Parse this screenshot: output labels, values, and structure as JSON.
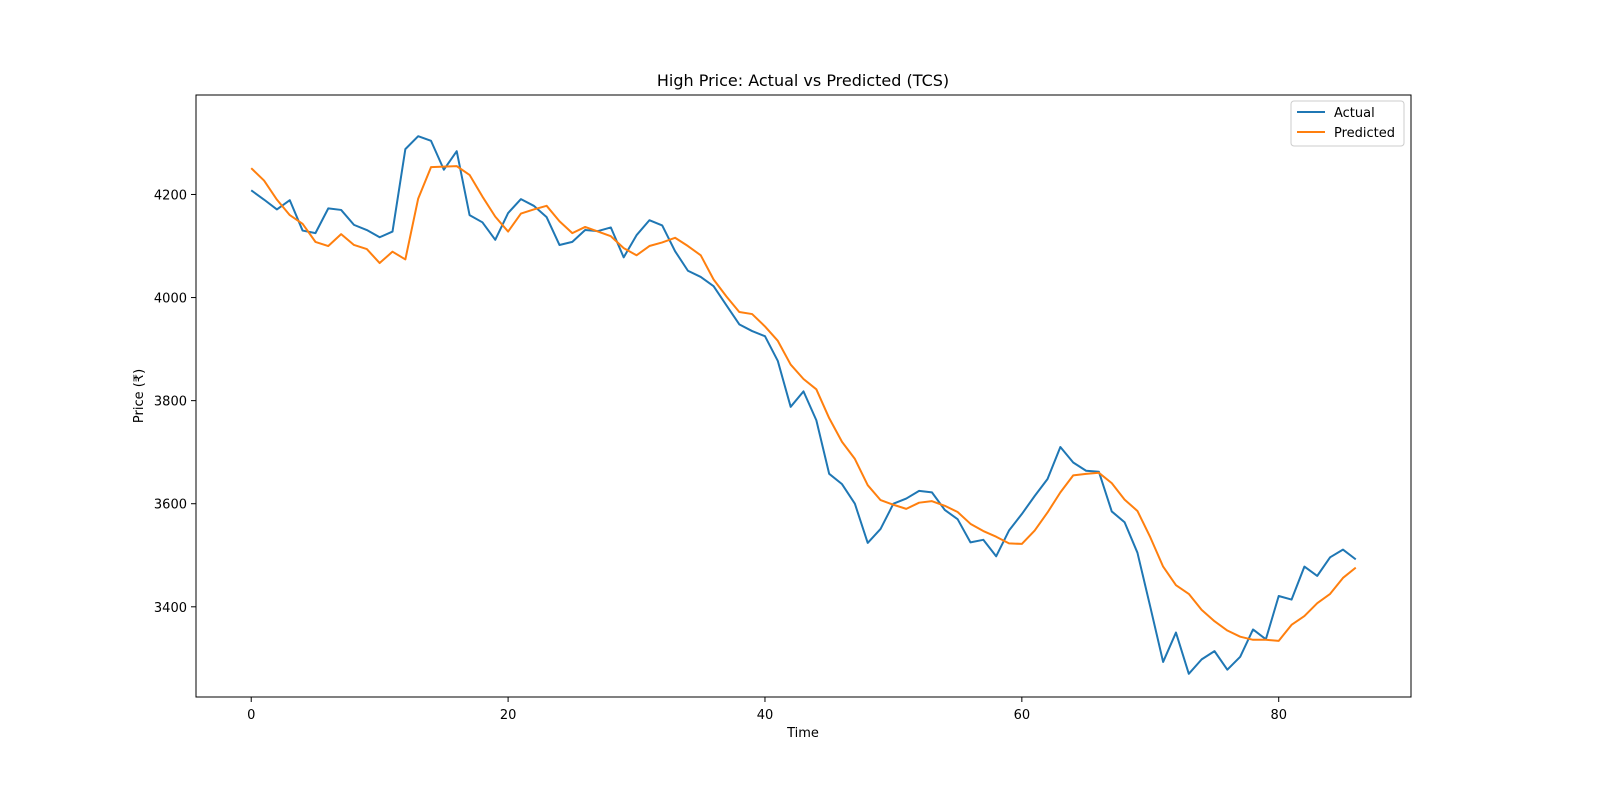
{
  "chart_data": {
    "type": "line",
    "title": "High Price: Actual vs Predicted (TCS)",
    "xlabel": "Time",
    "ylabel": "Price (₹)",
    "xlim": [
      -4.3,
      90.3
    ],
    "ylim": [
      3225,
      4393
    ],
    "xticks": [
      0,
      20,
      40,
      60,
      80
    ],
    "yticks": [
      3400,
      3600,
      3800,
      4000,
      4200
    ],
    "grid": false,
    "legend": "top-right",
    "series": [
      {
        "name": "Actual",
        "color": "#1f77b4",
        "values": [
          4208,
          4190,
          4171,
          4189,
          4130,
          4125,
          4173,
          4170,
          4141,
          4131,
          4117,
          4128,
          4288,
          4313,
          4304,
          4248,
          4284,
          4160,
          4146,
          4112,
          4164,
          4191,
          4178,
          4156,
          4102,
          4108,
          4131,
          4129,
          4136,
          4078,
          4121,
          4150,
          4140,
          4090,
          4052,
          4040,
          4022,
          3985,
          3948,
          3935,
          3925,
          3877,
          3788,
          3818,
          3762,
          3658,
          3638,
          3600,
          3524,
          3551,
          3600,
          3610,
          3625,
          3622,
          3588,
          3570,
          3525,
          3530,
          3498,
          3548,
          3580,
          3615,
          3648,
          3710,
          3680,
          3664,
          3662,
          3585,
          3564,
          3505,
          3400,
          3293,
          3350,
          3270,
          3298,
          3314,
          3278,
          3303,
          3356,
          3337,
          3421,
          3414,
          3478,
          3460,
          3496,
          3511,
          3492
        ]
      },
      {
        "name": "Predicted",
        "color": "#ff7f0e",
        "values": [
          4251,
          4227,
          4190,
          4160,
          4143,
          4108,
          4100,
          4123,
          4102,
          4094,
          4067,
          4089,
          4074,
          4192,
          4253,
          4254,
          4255,
          4238,
          4196,
          4157,
          4128,
          4163,
          4171,
          4178,
          4148,
          4125,
          4137,
          4128,
          4119,
          4096,
          4082,
          4100,
          4107,
          4116,
          4100,
          4082,
          4035,
          4002,
          3972,
          3968,
          3944,
          3916,
          3870,
          3842,
          3822,
          3766,
          3720,
          3687,
          3636,
          3607,
          3598,
          3590,
          3602,
          3605,
          3596,
          3584,
          3561,
          3547,
          3536,
          3523,
          3522,
          3548,
          3583,
          3622,
          3655,
          3658,
          3660,
          3640,
          3608,
          3586,
          3535,
          3478,
          3442,
          3425,
          3394,
          3372,
          3354,
          3342,
          3336,
          3336,
          3334,
          3365,
          3382,
          3407,
          3425,
          3456,
          3476
        ]
      }
    ]
  }
}
